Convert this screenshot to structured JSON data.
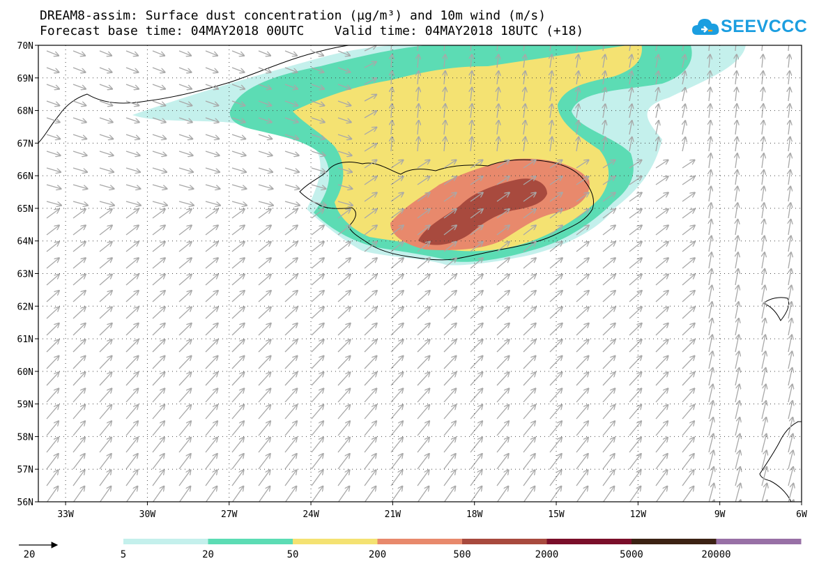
{
  "title": {
    "line1": "DREAM8-assim: Surface dust concentration (µg/m³) and 10m wind (m/s)",
    "line2": "Forecast base time: 04MAY2018 00UTC    Valid time: 04MAY2018 18UTC (+18)"
  },
  "logo": {
    "text": "SEEVCCC",
    "icon": "cloud-icon",
    "color": "#1b9ee0"
  },
  "map": {
    "lon_range": [
      -34,
      -6
    ],
    "lat_range": [
      56,
      70
    ],
    "y_ticks": [
      "56N",
      "57N",
      "58N",
      "59N",
      "60N",
      "61N",
      "62N",
      "63N",
      "64N",
      "65N",
      "66N",
      "67N",
      "68N",
      "69N",
      "70N"
    ],
    "x_ticks": [
      "33W",
      "30W",
      "27W",
      "24W",
      "21W",
      "18W",
      "15W",
      "12W",
      "9W",
      "6W"
    ],
    "ocean_color": "#ffffff",
    "gridlines": "dotted",
    "wind_arrow_color": "#a8a8a8"
  },
  "wind_scale": {
    "label": "20",
    "icon": "arrow-icon"
  },
  "legend": {
    "thresholds": [
      "5",
      "20",
      "50",
      "200",
      "500",
      "2000",
      "5000",
      "20000"
    ],
    "colors": [
      "#c4f0ec",
      "#5cdcb4",
      "#f4e272",
      "#e8896c",
      "#a84a3e",
      "#7a0e2a",
      "#3c2214",
      "#9870a6"
    ]
  }
}
